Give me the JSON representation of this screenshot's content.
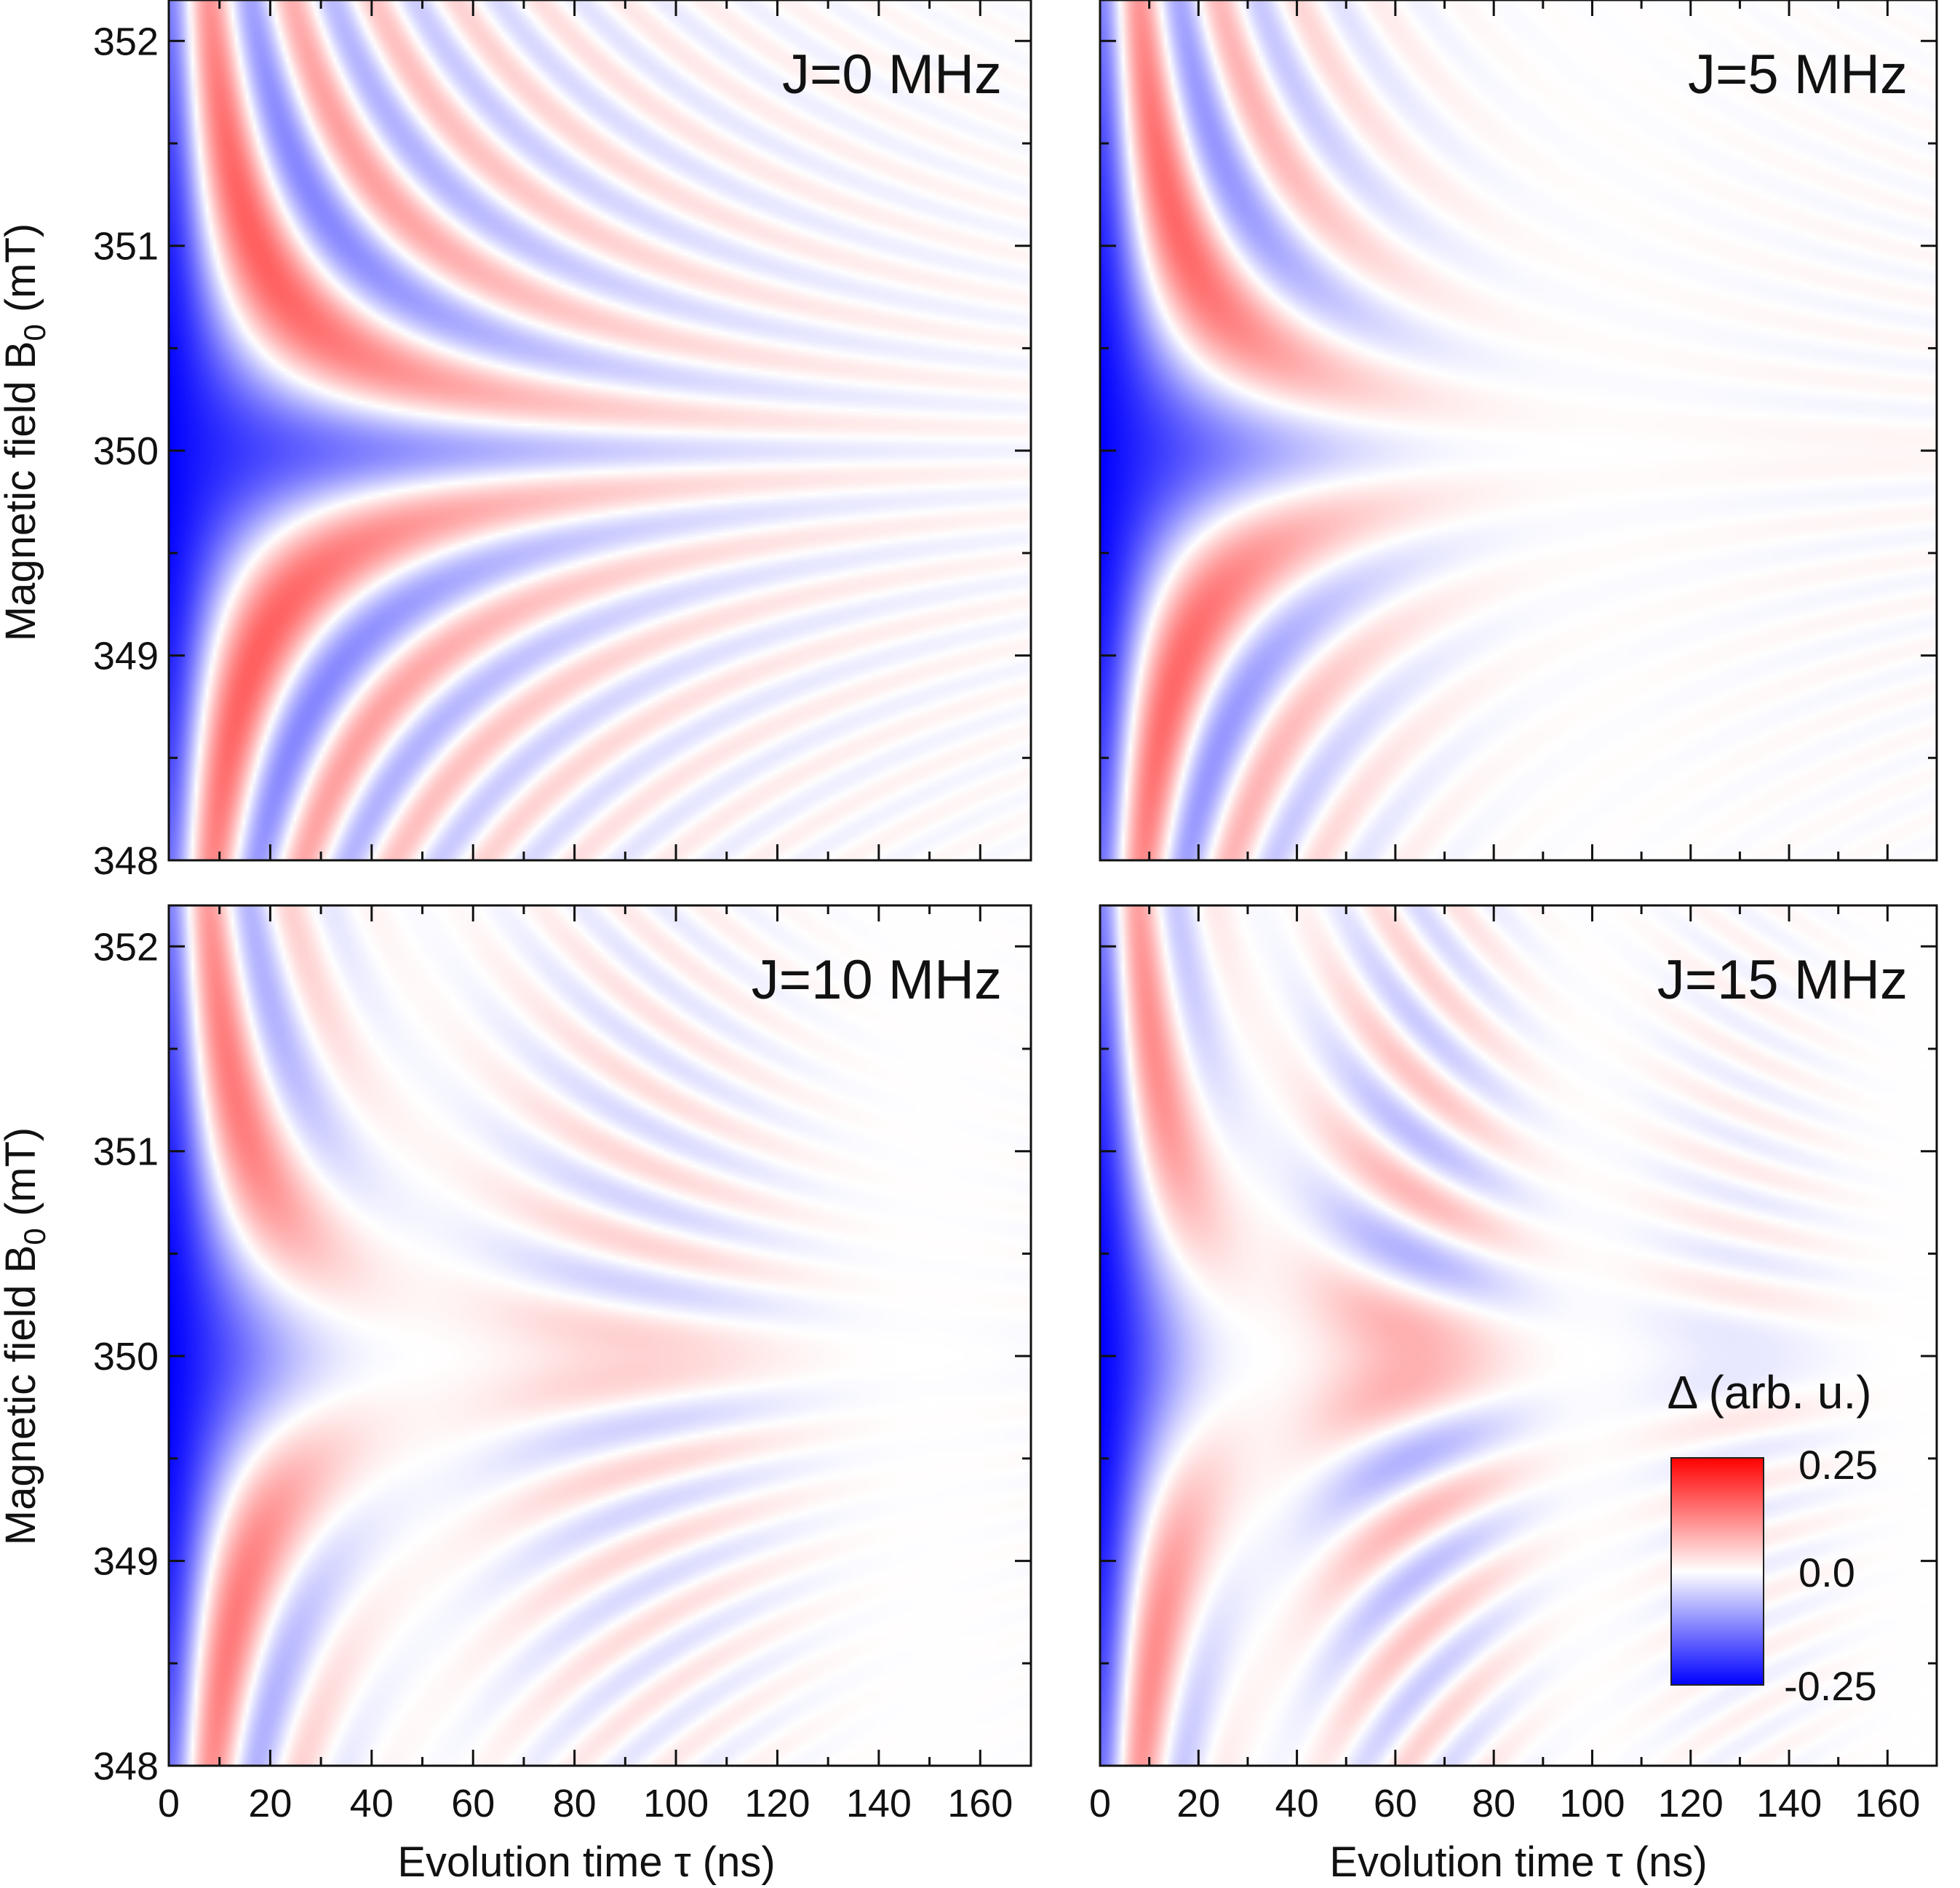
{
  "chart_data": {
    "type": "heatmap",
    "xlabel": "Evolution time τ (ns)",
    "ylabel_main": "Magnetic field B",
    "ylabel_sub": "0",
    "ylabel_unit": " (mT)",
    "xlim": [
      0,
      170
    ],
    "ylim": [
      348,
      352.2
    ],
    "x_ticks": [
      0,
      20,
      40,
      60,
      80,
      100,
      120,
      140,
      160
    ],
    "x_tick_labels": [
      "0",
      "20",
      "40",
      "60",
      "80",
      "100",
      "120",
      "140",
      "160"
    ],
    "y_ticks": [
      348,
      349,
      350,
      351,
      352
    ],
    "y_tick_labels": [
      "348",
      "349",
      "350",
      "351",
      "352"
    ],
    "panels": [
      {
        "label": "J=0 MHz",
        "J_MHz": 0
      },
      {
        "label": "J=5 MHz",
        "J_MHz": 5
      },
      {
        "label": "J=10 MHz",
        "J_MHz": 10
      },
      {
        "label": "J=15 MHz",
        "J_MHz": 15
      }
    ],
    "colorbar": {
      "title": "Δ (arb. u.)",
      "min": -0.25,
      "max": 0.25,
      "tick_labels": [
        "0.25",
        "0.0",
        "-0.25"
      ],
      "colors": [
        "#0000ff",
        "#ffffff",
        "#ff0000"
      ]
    }
  }
}
